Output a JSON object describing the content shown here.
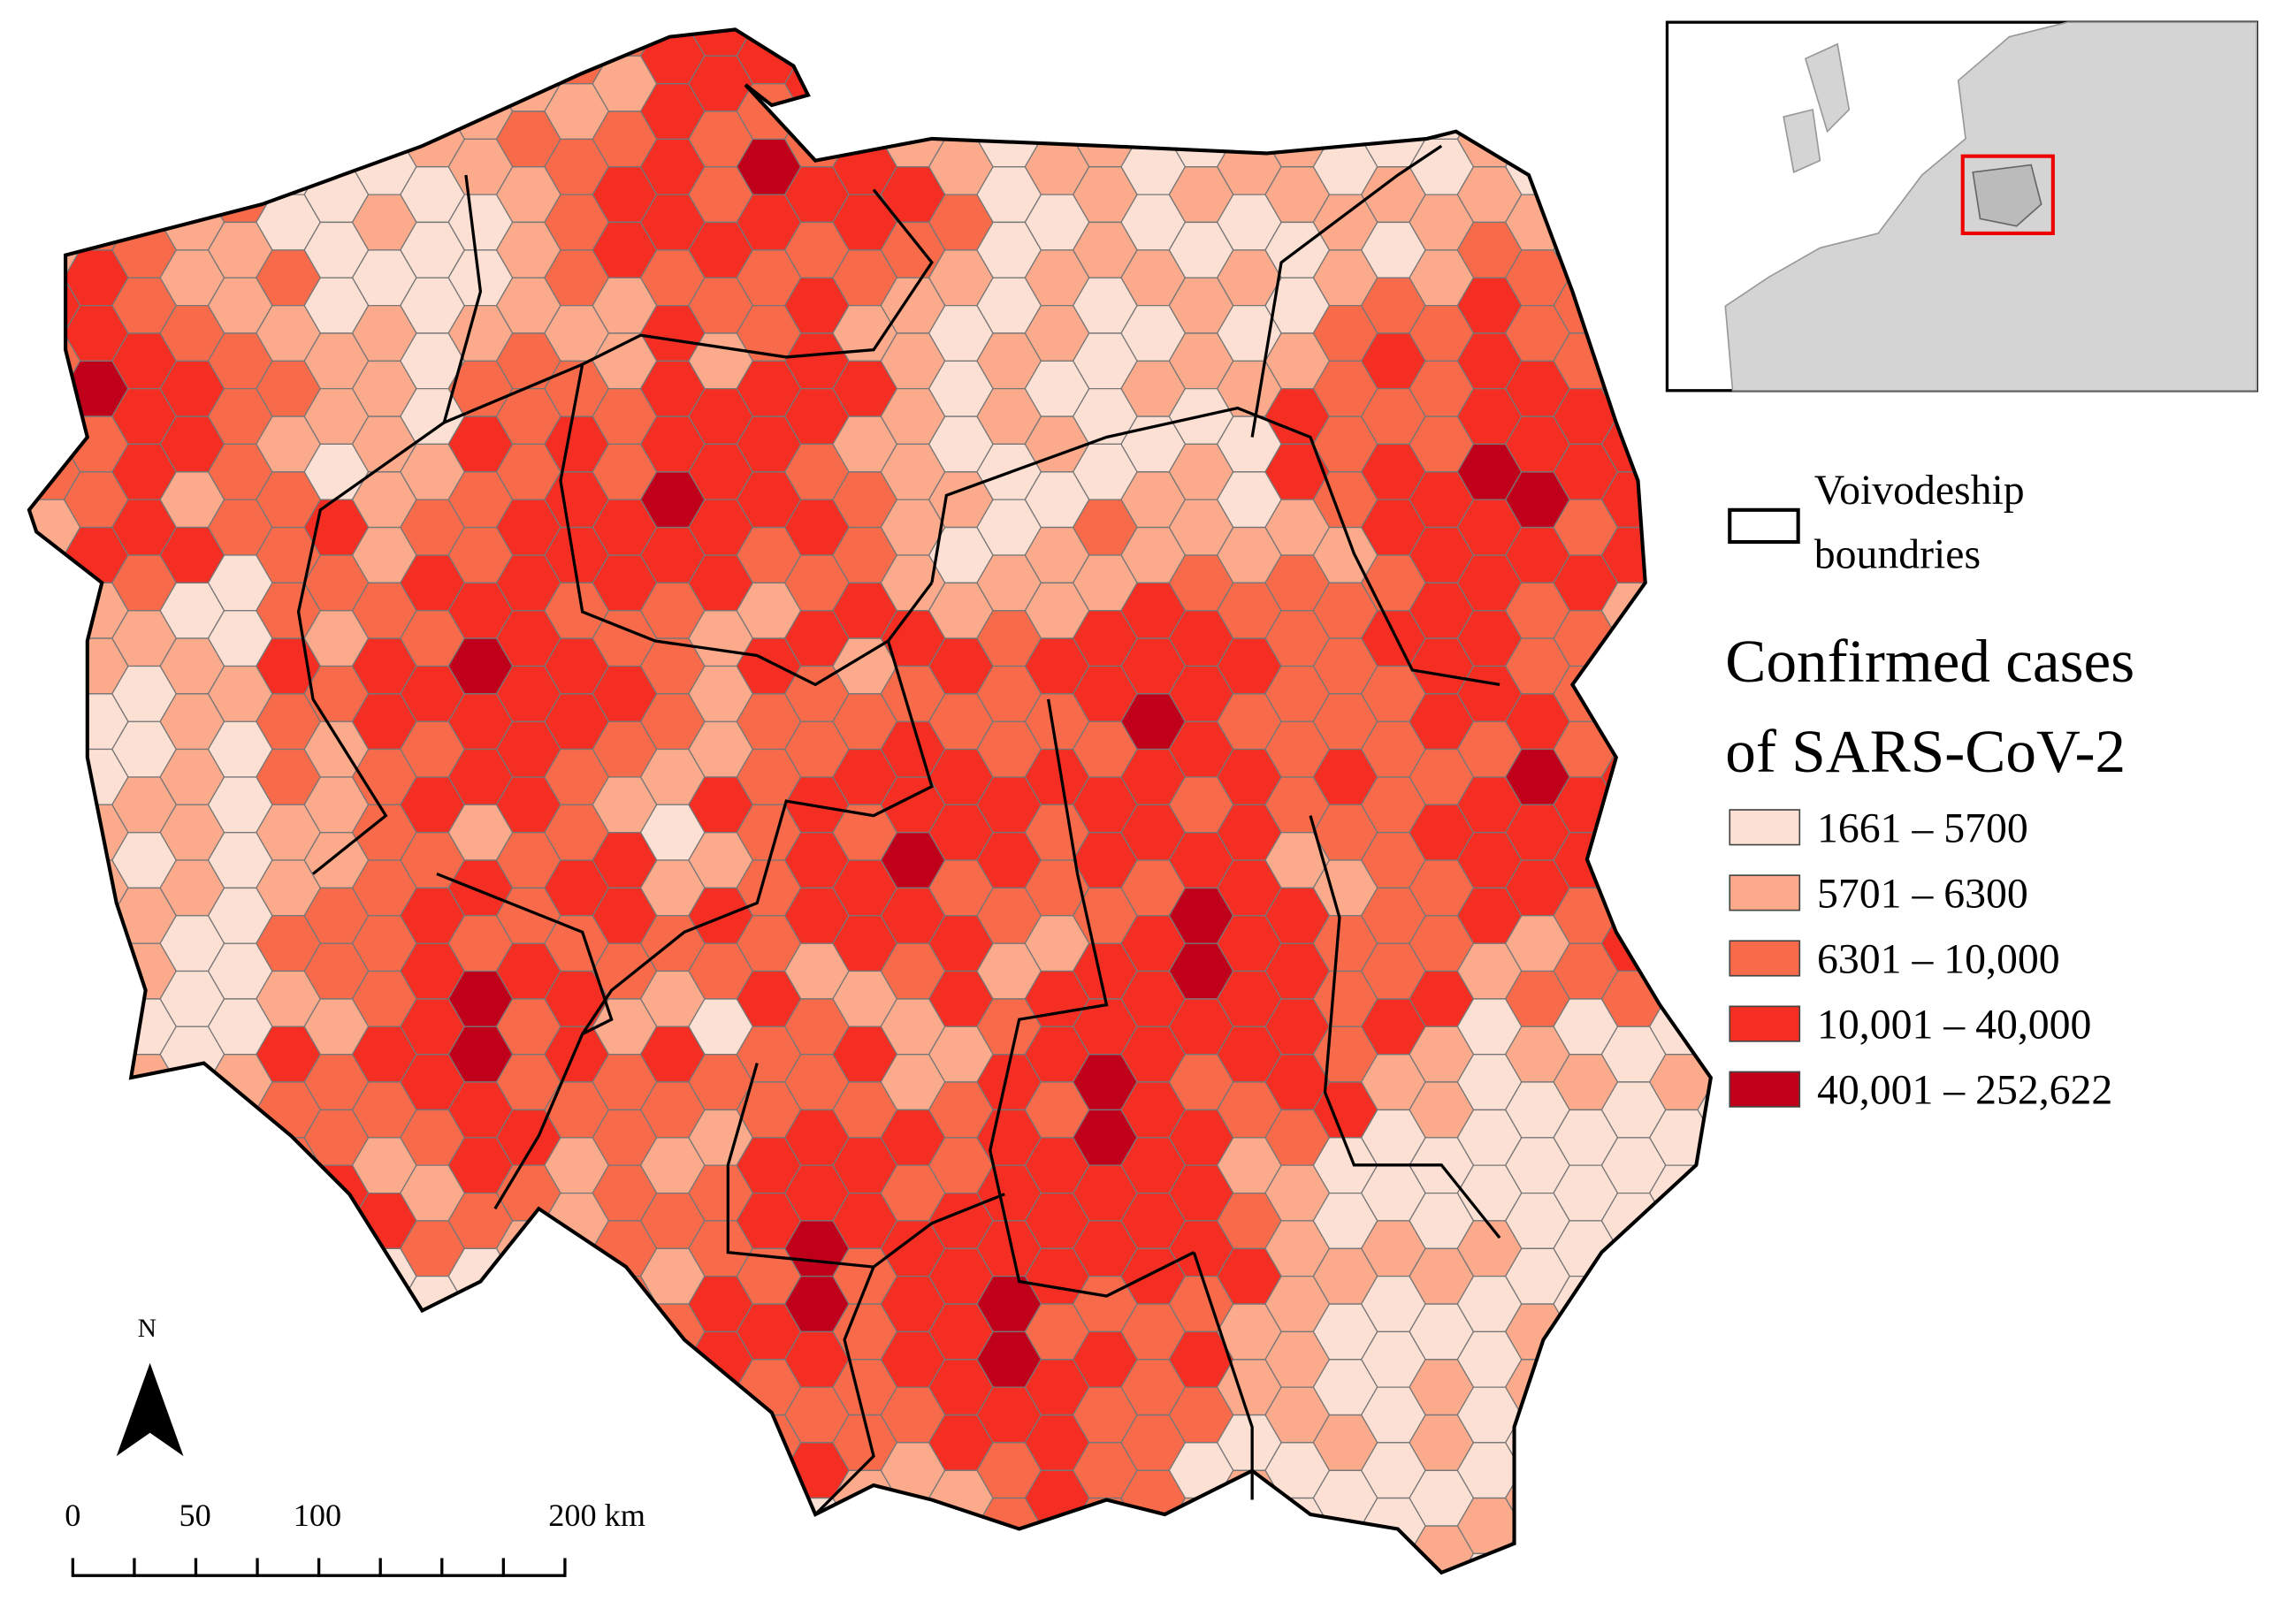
{
  "legend": {
    "boundary_label": [
      "Voivodeship",
      "boundries"
    ],
    "title": [
      "Confirmed cases",
      "of SARS-CoV-2"
    ],
    "classes": [
      {
        "label": "1661 – 5700",
        "color": "#fde0d4"
      },
      {
        "label": "5701 – 6300",
        "color": "#fbaa8c"
      },
      {
        "label": "6301 – 10,000",
        "color": "#f76b4a"
      },
      {
        "label": "10,001 – 40,000",
        "color": "#f42e22"
      },
      {
        "label": "40,001 – 252,622",
        "color": "#c0001b"
      }
    ]
  },
  "north_label": "N",
  "scale_bar": {
    "labels": [
      "0",
      "50",
      "100",
      "200 km"
    ]
  }
}
